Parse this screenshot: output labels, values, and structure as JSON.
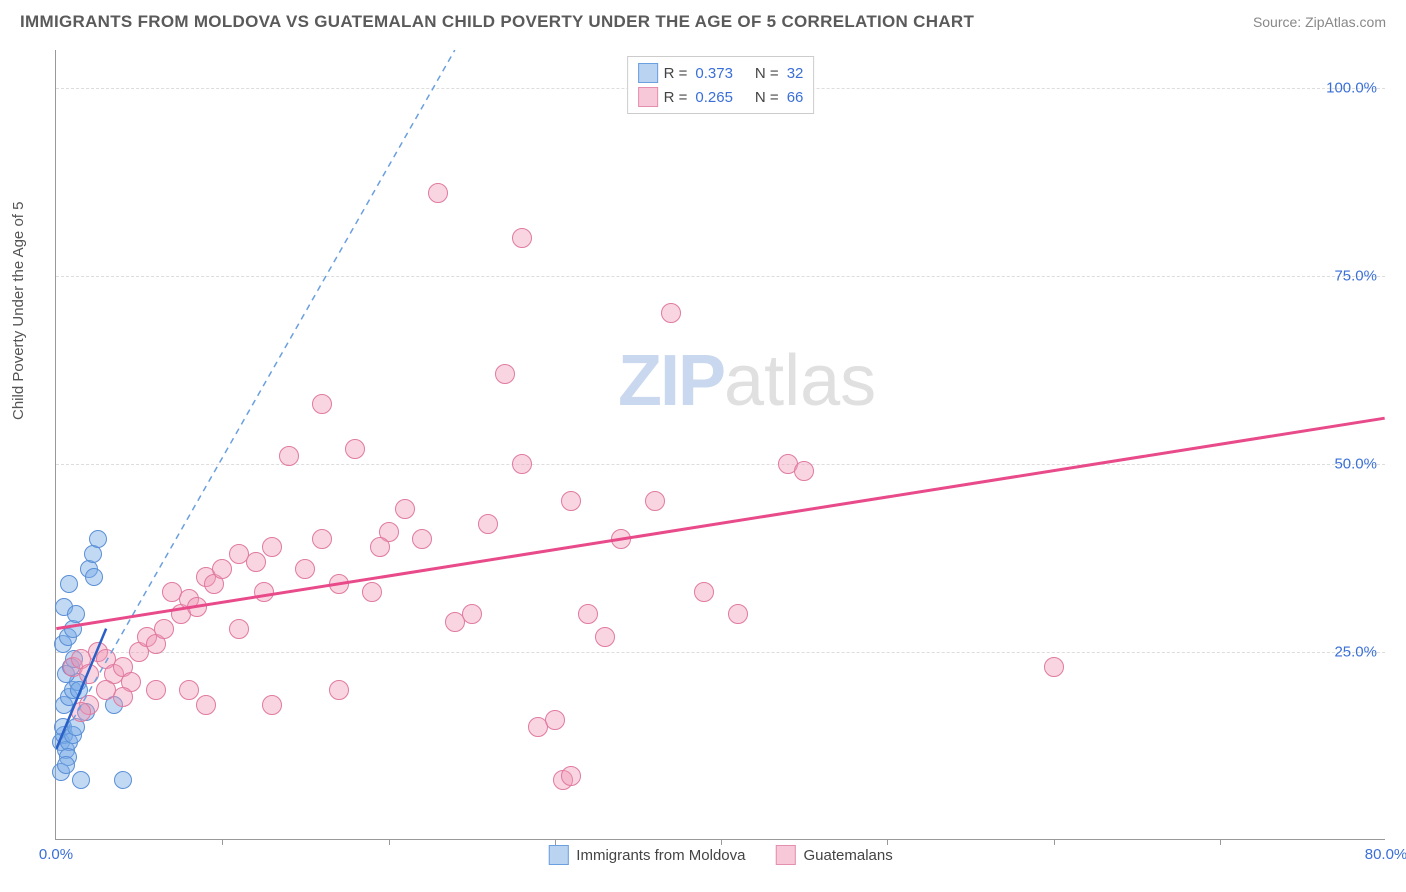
{
  "header": {
    "title": "IMMIGRANTS FROM MOLDOVA VS GUATEMALAN CHILD POVERTY UNDER THE AGE OF 5 CORRELATION CHART",
    "source_label": "Source: ",
    "source_value": "ZipAtlas.com"
  },
  "axes": {
    "y_label": "Child Poverty Under the Age of 5",
    "x_min": 0,
    "x_max": 80,
    "y_min": 0,
    "y_max": 105,
    "x_ticks": [
      {
        "v": 0,
        "label": "0.0%"
      },
      {
        "v": 80,
        "label": "80.0%"
      }
    ],
    "x_tick_marks": [
      10,
      20,
      30,
      40,
      50,
      60,
      70
    ],
    "y_ticks": [
      {
        "v": 25,
        "label": "25.0%"
      },
      {
        "v": 50,
        "label": "50.0%"
      },
      {
        "v": 75,
        "label": "75.0%"
      },
      {
        "v": 100,
        "label": "100.0%"
      }
    ],
    "grid_color": "#dddddd",
    "axis_color": "#999999",
    "tick_text_color": "#3a6fd8"
  },
  "watermark": {
    "part1": "ZIP",
    "part2": "atlas"
  },
  "series": [
    {
      "name": "Immigrants from Moldova",
      "key": "moldova",
      "fill": "rgba(120,170,230,0.45)",
      "stroke": "#5a8fd6",
      "swatch_fill": "#b9d3f0",
      "swatch_border": "#6a9fe0",
      "marker_radius": 9,
      "R": "0.373",
      "N": "32",
      "trend": {
        "solid": {
          "x1": 0,
          "y1": 12,
          "x2": 3,
          "y2": 28,
          "color": "#2a5fc8",
          "width": 2.5
        },
        "dashed": {
          "x1": 0,
          "y1": 12,
          "x2": 24,
          "y2": 105,
          "color": "#6a9fe0",
          "width": 1.5,
          "dash": "6,5"
        }
      },
      "points": [
        [
          0.3,
          13
        ],
        [
          0.5,
          14
        ],
        [
          0.4,
          15
        ],
        [
          0.6,
          12
        ],
        [
          0.8,
          13
        ],
        [
          1.0,
          14
        ],
        [
          0.7,
          11
        ],
        [
          1.2,
          15
        ],
        [
          0.5,
          18
        ],
        [
          0.8,
          19
        ],
        [
          1.0,
          20
        ],
        [
          1.3,
          21
        ],
        [
          0.6,
          22
        ],
        [
          0.9,
          23
        ],
        [
          1.1,
          24
        ],
        [
          1.4,
          20
        ],
        [
          0.4,
          26
        ],
        [
          0.7,
          27
        ],
        [
          1.0,
          28
        ],
        [
          0.5,
          31
        ],
        [
          1.2,
          30
        ],
        [
          0.8,
          34
        ],
        [
          2.0,
          36
        ],
        [
          2.2,
          38
        ],
        [
          2.5,
          40
        ],
        [
          2.3,
          35
        ],
        [
          1.8,
          17
        ],
        [
          3.5,
          18
        ],
        [
          1.5,
          8
        ],
        [
          4.0,
          8
        ],
        [
          0.3,
          9
        ],
        [
          0.6,
          10
        ]
      ]
    },
    {
      "name": "Guatemalans",
      "key": "guatemalans",
      "fill": "rgba(240,150,180,0.40)",
      "stroke": "#e07aa0",
      "swatch_fill": "#f6c8d8",
      "swatch_border": "#e58fb0",
      "marker_radius": 10,
      "R": "0.265",
      "N": "66",
      "trend": {
        "solid": {
          "x1": 0,
          "y1": 28,
          "x2": 80,
          "y2": 56,
          "color": "#e84a8a",
          "width": 3
        }
      },
      "points": [
        [
          1.0,
          23
        ],
        [
          1.5,
          24
        ],
        [
          2.0,
          22
        ],
        [
          2.5,
          25
        ],
        [
          3.0,
          24
        ],
        [
          3.5,
          22
        ],
        [
          4.0,
          23
        ],
        [
          4.5,
          21
        ],
        [
          5.0,
          25
        ],
        [
          5.5,
          27
        ],
        [
          6.0,
          26
        ],
        [
          6.5,
          28
        ],
        [
          7.0,
          33
        ],
        [
          7.5,
          30
        ],
        [
          8.0,
          32
        ],
        [
          8.5,
          31
        ],
        [
          9.0,
          35
        ],
        [
          9.5,
          34
        ],
        [
          10.0,
          36
        ],
        [
          11.0,
          38
        ],
        [
          12.0,
          37
        ],
        [
          13.0,
          39
        ],
        [
          14.0,
          51
        ],
        [
          15.0,
          36
        ],
        [
          16.0,
          40
        ],
        [
          17.0,
          34
        ],
        [
          18.0,
          52
        ],
        [
          19.0,
          33
        ],
        [
          20.0,
          41
        ],
        [
          21.0,
          44
        ],
        [
          22.0,
          40
        ],
        [
          23.0,
          86
        ],
        [
          24.0,
          29
        ],
        [
          25.0,
          30
        ],
        [
          26.0,
          42
        ],
        [
          27.0,
          62
        ],
        [
          28.0,
          50
        ],
        [
          28.0,
          80
        ],
        [
          29.0,
          15
        ],
        [
          30.0,
          16
        ],
        [
          30.5,
          8
        ],
        [
          31.0,
          8.5
        ],
        [
          31.0,
          45
        ],
        [
          32.0,
          30
        ],
        [
          33.0,
          27
        ],
        [
          34.0,
          40
        ],
        [
          36.0,
          45
        ],
        [
          37.0,
          70
        ],
        [
          39.0,
          33
        ],
        [
          41.0,
          30
        ],
        [
          44.0,
          50
        ],
        [
          45.0,
          49
        ],
        [
          16.0,
          58
        ],
        [
          13.0,
          18
        ],
        [
          17.0,
          20
        ],
        [
          60.0,
          23
        ],
        [
          9.0,
          18
        ],
        [
          6.0,
          20
        ],
        [
          4.0,
          19
        ],
        [
          3.0,
          20
        ],
        [
          2.0,
          18
        ],
        [
          1.5,
          17
        ],
        [
          8.0,
          20
        ],
        [
          11.0,
          28
        ],
        [
          12.5,
          33
        ],
        [
          19.5,
          39
        ]
      ]
    }
  ],
  "legend_top": {
    "r_label": "R =",
    "n_label": "N ="
  },
  "legend_bottom_items": [
    "moldova",
    "guatemalans"
  ]
}
